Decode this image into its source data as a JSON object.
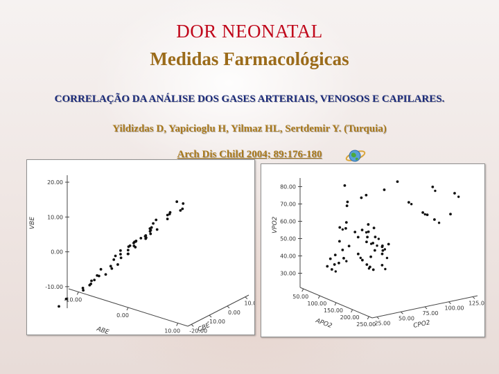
{
  "header": {
    "title": "DOR NEONATAL",
    "subtitle": "Medidas Farmacológicas"
  },
  "reference": {
    "line1": "CORRELAÇÃO DA ANÁLISE DOS GASES ARTERIAIS, VENOSOS E CAPILARES.",
    "line2": "Yildizdas D, Yapicioglu H, Yilmaz HL, Sertdemir Y. (Turquia)",
    "line3": "Arch Dis Child 2004; 89:176-180",
    "icon": "globe-icon"
  },
  "colors": {
    "title": "#c0081b",
    "subtitle": "#9b6b1a",
    "ref_navy": "#1a2a7a",
    "ref_gold": "#a9791c",
    "points": "#111111"
  },
  "chart_data": [
    {
      "type": "scatter",
      "projection": "3d",
      "axes": {
        "vertical": {
          "label": "VBE",
          "ticks": [
            "20.00",
            "10.00",
            "0.00",
            "-10.00"
          ],
          "range": [
            -15,
            22
          ]
        },
        "left_depth": {
          "label": "ABE",
          "ticks": [
            "-10.00",
            "0.00",
            "10.00"
          ],
          "range": [
            -12,
            12
          ]
        },
        "right_depth": {
          "label": "CBE",
          "ticks": [
            "-20.00",
            "-10.00",
            "0.00",
            "10.00"
          ],
          "range": [
            -22,
            12
          ]
        }
      },
      "points_vbe": [
        -15,
        -14,
        -11,
        -10,
        -9.5,
        -9,
        -8.5,
        -8,
        -7.5,
        -7,
        -6,
        -5,
        -4.5,
        -4,
        -3,
        -2.5,
        -2,
        -1.5,
        -1,
        -0.5,
        0,
        0,
        0.5,
        1,
        1,
        1.5,
        2,
        2,
        2.5,
        3,
        3,
        3.5,
        4,
        4,
        4.5,
        5,
        5,
        5.5,
        6,
        6.5,
        7,
        7.5,
        8,
        8.5,
        9,
        10,
        11,
        12,
        12.5,
        13,
        13.5,
        14
      ],
      "grid": false
    },
    {
      "type": "scatter",
      "projection": "3d",
      "axes": {
        "vertical": {
          "label": "VPO2",
          "ticks": [
            "80.00",
            "70.00",
            "60.00",
            "50.00",
            "40.00",
            "30.00"
          ],
          "range": [
            25,
            85
          ]
        },
        "left_depth": {
          "label": "APO2",
          "ticks": [
            "50.00",
            "100.00",
            "150.00",
            "200.00",
            "250.00"
          ],
          "range": [
            40,
            260
          ]
        },
        "right_depth": {
          "label": "CPO2",
          "ticks": [
            "25.00",
            "50.00",
            "75.00",
            "100.00",
            "125.00"
          ],
          "range": [
            20,
            130
          ]
        }
      },
      "points_vpo2": [
        31,
        32,
        33,
        34,
        35,
        35,
        36,
        37,
        38,
        38,
        39,
        40,
        40,
        41,
        42,
        42,
        43,
        44,
        45,
        46,
        46,
        47,
        48,
        48,
        49,
        50,
        51,
        52,
        53,
        54,
        55,
        55,
        56,
        57,
        58,
        60,
        62,
        63,
        64,
        66,
        68,
        70,
        72,
        74,
        75,
        76,
        78,
        80,
        81,
        82
      ],
      "grid": false
    }
  ]
}
